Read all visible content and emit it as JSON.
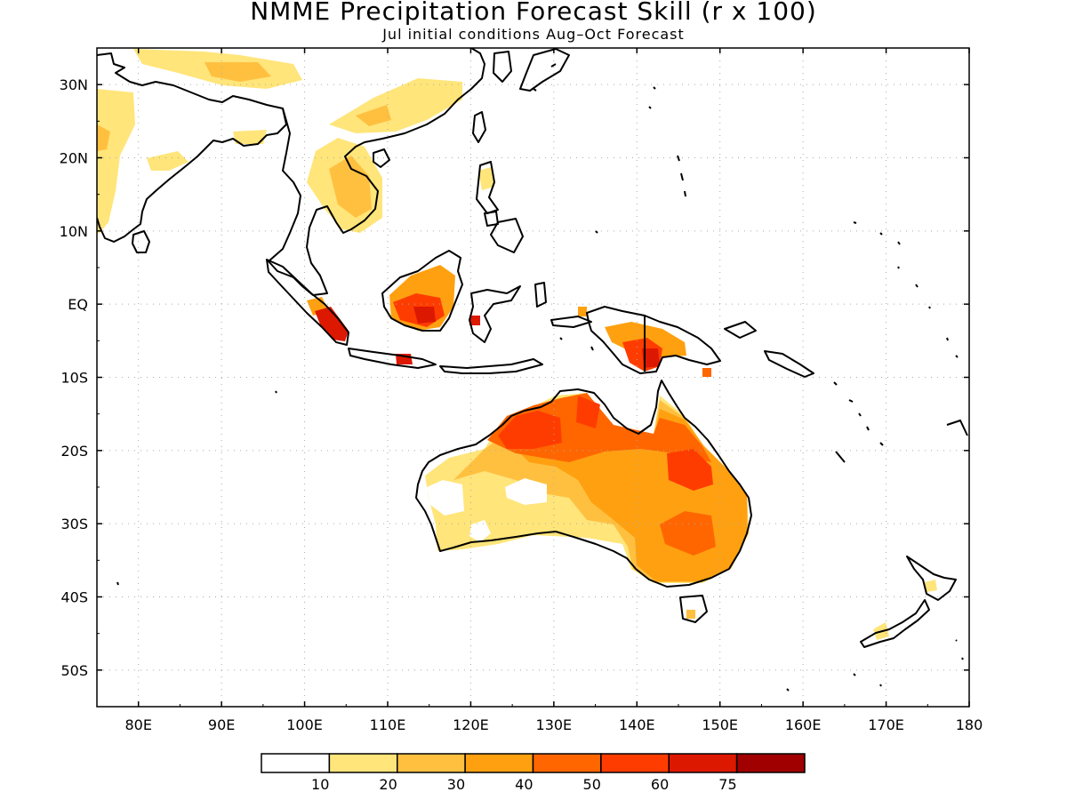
{
  "header": {
    "title": "NMME Precipitation Forecast Skill (r x 100)",
    "subtitle": "Jul initial conditions  Aug–Oct Forecast"
  },
  "map": {
    "lon_range": [
      75,
      180
    ],
    "lat_range": [
      -55,
      35
    ],
    "x_ticks": [
      "80E",
      "90E",
      "100E",
      "110E",
      "120E",
      "130E",
      "140E",
      "150E",
      "160E",
      "170E",
      "180"
    ],
    "y_ticks": [
      "30N",
      "20N",
      "10N",
      "EQ",
      "10S",
      "20S",
      "30S",
      "40S",
      "50S"
    ],
    "grid": true
  },
  "colorbar": {
    "labels": [
      "10",
      "20",
      "30",
      "40",
      "50",
      "60",
      "75"
    ],
    "colors": [
      "#ffffff",
      "#ffe57a",
      "#ffc040",
      "#ffa010",
      "#ff6600",
      "#ff3c00",
      "#dd1800",
      "#a00000"
    ]
  },
  "chart_data": {
    "type": "heatmap",
    "title": "NMME Precipitation Forecast Skill (r x 100)",
    "subtitle": "Jul initial conditions  Aug–Oct Forecast",
    "xlim": [
      75,
      180
    ],
    "ylim": [
      -55,
      35
    ],
    "levels": [
      10,
      20,
      30,
      40,
      50,
      60,
      75
    ],
    "regions": [
      {
        "lon": 147,
        "lat": -22,
        "value": 55
      },
      {
        "lon": 132,
        "lat": -17,
        "value": 50
      },
      {
        "lon": 139,
        "lat": -22,
        "value": 45
      },
      {
        "lon": 146,
        "lat": -31,
        "value": 42
      },
      {
        "lon": 126,
        "lat": -22,
        "value": 30
      },
      {
        "lon": 121,
        "lat": -29,
        "value": 15
      },
      {
        "lon": 113,
        "lat": -1,
        "value": 55
      },
      {
        "lon": 105,
        "lat": -3,
        "value": 60
      },
      {
        "lon": 142,
        "lat": -7,
        "value": 60
      },
      {
        "lon": 106,
        "lat": 16,
        "value": 25
      },
      {
        "lon": 118,
        "lat": 26,
        "value": 15
      }
    ]
  }
}
